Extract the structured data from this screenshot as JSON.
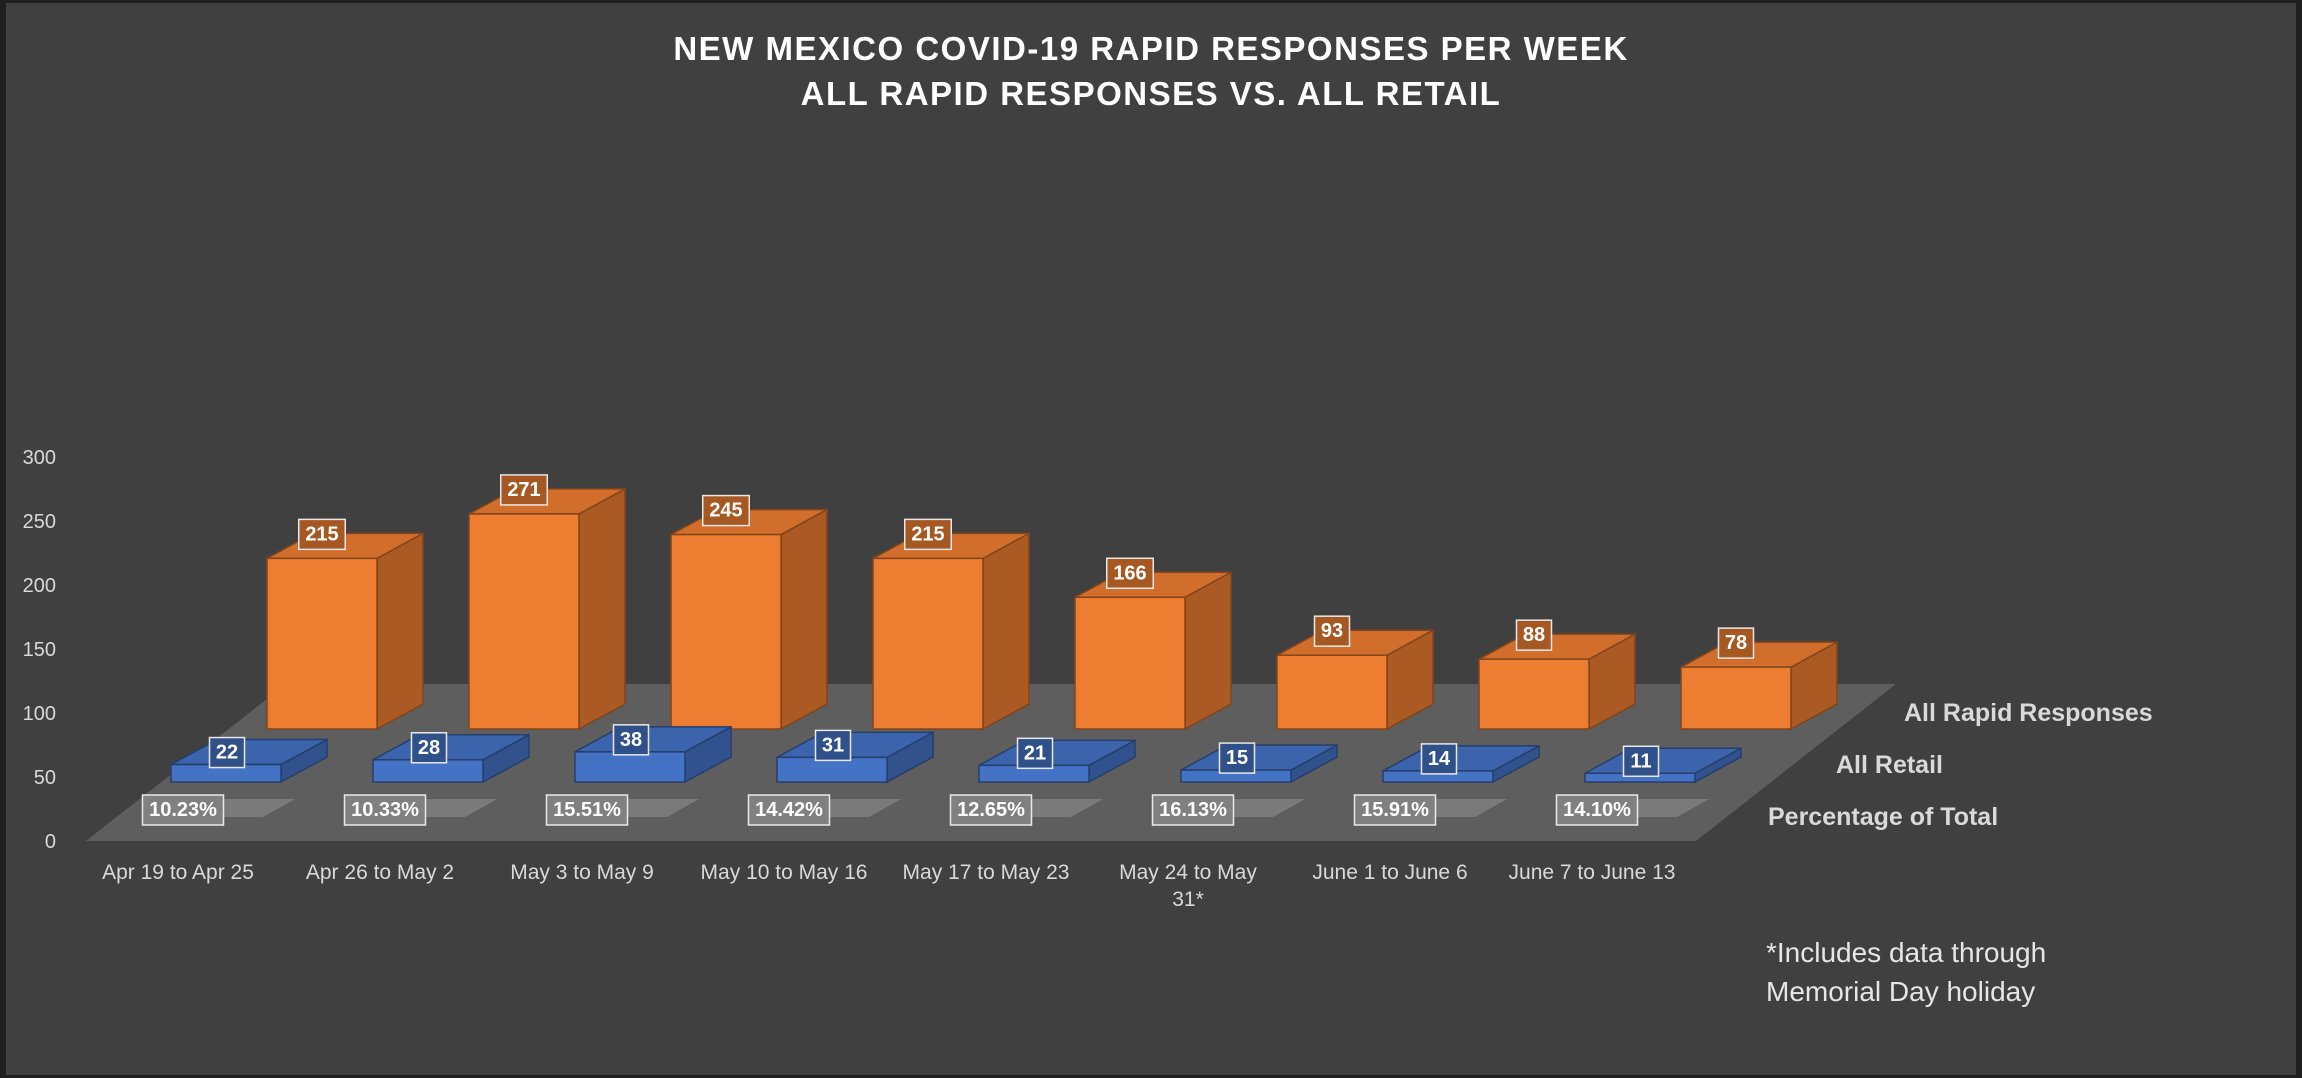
{
  "chart_data": {
    "type": "bar",
    "subtype": "3d-column",
    "title": "NEW MEXICO COVID-19 RAPID RESPONSES PER WEEK",
    "subtitle": "ALL RAPID RESPONSES VS. ALL RETAIL",
    "categories": [
      "Apr 19 to Apr 25",
      "Apr 26 to May 2",
      "May 3 to May 9",
      "May 10 to May 16",
      "May 17 to May 23",
      "May 24 to May 31*",
      "June 1 to June 6",
      "June 7 to June 13"
    ],
    "series": [
      {
        "name": "All Rapid Responses",
        "color": "#ed7d31",
        "values": [
          215,
          271,
          245,
          215,
          166,
          93,
          88,
          78
        ]
      },
      {
        "name": "All Retail",
        "color": "#4472c4",
        "values": [
          22,
          28,
          38,
          31,
          21,
          15,
          14,
          11
        ]
      },
      {
        "name": "Percentage of Total",
        "color": "#7f7f7f",
        "values": [
          10.23,
          10.33,
          15.51,
          14.42,
          12.65,
          16.13,
          15.91,
          14.1
        ],
        "labels": [
          "10.23%",
          "10.33%",
          "15.51%",
          "14.42%",
          "12.65%",
          "16.13%",
          "15.91%",
          "14.10%"
        ]
      }
    ],
    "y_ticks": [
      "0",
      "50",
      "100",
      "150",
      "200",
      "250",
      "300"
    ],
    "ylim": [
      0,
      300
    ],
    "legend": "depth-axis labels on right",
    "footnote": [
      "*Includes data through",
      "Memorial Day holiday"
    ]
  }
}
